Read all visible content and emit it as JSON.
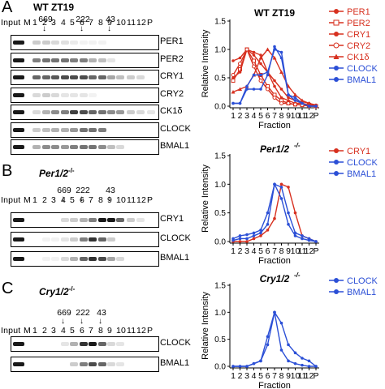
{
  "panels": [
    {
      "letter": "A",
      "title": "WT ZT19",
      "italic": false,
      "markers": [
        {
          "text": "669",
          "lane": 2
        },
        {
          "text": "222",
          "lane": 6
        },
        {
          "text": "43",
          "lane": 9
        }
      ],
      "rows": [
        {
          "label": "PER1",
          "dark": [
            0,
            0.2,
            0.2,
            0.15,
            0.12,
            0.08,
            0.05,
            0.05,
            0.05,
            0,
            0,
            0,
            0,
            0
          ]
        },
        {
          "label": "PER2",
          "dark": [
            0,
            0.5,
            0.55,
            0.55,
            0.55,
            0.5,
            0.5,
            0.3,
            0.25,
            0.1,
            0,
            0,
            0,
            0
          ]
        },
        {
          "label": "CRY1",
          "dark": [
            0,
            0.6,
            0.6,
            0.65,
            0.7,
            0.7,
            0.7,
            0.6,
            0.6,
            0.35,
            0.25,
            0.2,
            0.15,
            0
          ]
        },
        {
          "label": "CRY2",
          "dark": [
            0,
            0.15,
            0.2,
            0.15,
            0.1,
            0.1,
            0.1,
            0.05,
            0,
            0,
            0,
            0,
            0,
            0
          ]
        },
        {
          "label": "CK1δ",
          "dark": [
            0,
            0.15,
            0.3,
            0.45,
            0.5,
            0.75,
            0.7,
            0.6,
            0.55,
            0.45,
            0.4,
            0.2,
            0.15,
            0.1
          ]
        },
        {
          "label": "CLOCK",
          "dark": [
            0,
            0.2,
            0.25,
            0.3,
            0.3,
            0.4,
            0.55,
            0.55,
            0.5,
            0,
            0,
            0,
            0,
            0
          ]
        },
        {
          "label": "BMAL1",
          "dark": [
            0,
            0.3,
            0.45,
            0.45,
            0.4,
            0.5,
            0.55,
            0.55,
            0.45,
            0.25,
            0.15,
            0,
            0,
            0
          ]
        }
      ]
    },
    {
      "letter": "B",
      "title": "Per1/2",
      "sup": "-/-",
      "italic": true,
      "markers": [
        {
          "text": "669",
          "lane": 4
        },
        {
          "text": "222",
          "lane": 6
        },
        {
          "text": "43",
          "lane": 9
        }
      ],
      "rows": [
        {
          "label": "CRY1",
          "dark": [
            0,
            0,
            0,
            0,
            0.15,
            0.2,
            0.3,
            0.5,
            0.9,
            0.9,
            0.6,
            0.2,
            0.1,
            0
          ]
        },
        {
          "label": "CLOCK",
          "dark": [
            0,
            0,
            0.05,
            0.05,
            0.1,
            0.2,
            0.5,
            0.8,
            0.6,
            0.2,
            0,
            0,
            0,
            0
          ]
        },
        {
          "label": "BMAL1",
          "dark": [
            0,
            0,
            0.05,
            0.05,
            0.15,
            0.3,
            0.6,
            0.8,
            0.7,
            0.35,
            0.15,
            0,
            0,
            0
          ]
        }
      ]
    },
    {
      "letter": "C",
      "title": "Cry1/2",
      "sup": "-/-",
      "italic": true,
      "markers": [
        {
          "text": "669",
          "lane": 4
        },
        {
          "text": "222",
          "lane": 6
        },
        {
          "text": "43",
          "lane": 8
        }
      ],
      "rows": [
        {
          "label": "CLOCK",
          "dark": [
            0,
            0,
            0,
            0,
            0.1,
            0.3,
            0.8,
            0.9,
            0.6,
            0.15,
            0.1,
            0,
            0,
            0
          ]
        },
        {
          "label": "BMAL1",
          "dark": [
            0,
            0,
            0,
            0,
            0,
            0.2,
            0.5,
            0.7,
            0.6,
            0.15,
            0.1,
            0,
            0,
            0
          ]
        }
      ]
    }
  ],
  "lane_header": [
    "Input",
    "M",
    "1",
    "2",
    "3",
    "4",
    "5",
    "6",
    "7",
    "8",
    "9",
    "10",
    "11",
    "12",
    "P"
  ],
  "chart_data": [
    {
      "type": "line",
      "title": "WT ZT19",
      "xlabel": "Fraction",
      "ylabel": "Relative Intensity",
      "categories": [
        "1",
        "2",
        "3",
        "4",
        "5",
        "6",
        "7",
        "8",
        "9",
        "10",
        "11",
        "12",
        "P"
      ],
      "ylim": [
        0,
        1.5
      ],
      "yticks": [
        "0.0",
        "0.5",
        "1.0",
        "1.5"
      ],
      "legend": "right",
      "series": [
        {
          "name": "PER1",
          "color": "#d7301f",
          "marker": "circle",
          "values": [
            0.8,
            0.85,
            1.0,
            0.95,
            0.9,
            0.6,
            0.35,
            0.15,
            0.1,
            0.05,
            0.05,
            0.02,
            0.0
          ]
        },
        {
          "name": "PER2",
          "color": "#d7301f",
          "marker": "square-open",
          "values": [
            0.45,
            0.65,
            1.0,
            0.8,
            0.55,
            0.35,
            0.2,
            0.1,
            0.05,
            0.03,
            0.02,
            0.02,
            0.0
          ]
        },
        {
          "name": "CRY1",
          "color": "#d7301f",
          "marker": "circle",
          "values": [
            0.5,
            0.6,
            1.0,
            0.9,
            0.75,
            0.6,
            0.45,
            0.3,
            0.15,
            0.1,
            0.08,
            0.05,
            0.02
          ]
        },
        {
          "name": "CRY2",
          "color": "#d7301f",
          "marker": "circle-open",
          "values": [
            0.55,
            0.75,
            1.0,
            0.7,
            0.45,
            0.3,
            0.15,
            0.05,
            0.05,
            0.03,
            0.02,
            0.0,
            0.0
          ]
        },
        {
          "name": "CK1δ",
          "color": "#d7301f",
          "marker": "triangle",
          "values": [
            0.25,
            0.3,
            0.35,
            0.55,
            0.85,
            1.0,
            0.85,
            0.6,
            0.35,
            0.2,
            0.1,
            0.05,
            0.0
          ]
        },
        {
          "name": "CLOCK",
          "color": "#2b4fd6",
          "marker": "circle",
          "values": [
            0.05,
            0.05,
            0.35,
            0.55,
            0.55,
            0.6,
            1.0,
            0.95,
            0.2,
            0.1,
            0.05,
            0.0,
            0.0
          ]
        },
        {
          "name": "BMAL1",
          "color": "#2b4fd6",
          "marker": "circle",
          "values": [
            0.05,
            0.05,
            0.3,
            0.3,
            0.3,
            0.55,
            1.05,
            0.85,
            0.2,
            0.15,
            0.05,
            0.0,
            0.0
          ]
        }
      ]
    },
    {
      "type": "line",
      "title": "Per1/2",
      "title_sup": "-/-",
      "xlabel": "Fraction",
      "ylabel": "Relative Intensity",
      "categories": [
        "1",
        "2",
        "3",
        "4",
        "5",
        "6",
        "7",
        "8",
        "9",
        "10",
        "11",
        "12",
        "P"
      ],
      "ylim": [
        0,
        1.5
      ],
      "yticks": [
        "0.0",
        "0.5",
        "1.0",
        "1.5"
      ],
      "legend": "right",
      "series": [
        {
          "name": "CRY1",
          "color": "#d7301f",
          "marker": "circle",
          "values": [
            0.0,
            0.0,
            0.0,
            0.05,
            0.1,
            0.2,
            0.4,
            1.0,
            0.95,
            0.5,
            0.1,
            0.05,
            0.0
          ]
        },
        {
          "name": "CLOCK",
          "color": "#2b4fd6",
          "marker": "circle",
          "values": [
            0.02,
            0.05,
            0.05,
            0.1,
            0.15,
            0.3,
            1.0,
            0.75,
            0.3,
            0.1,
            0.05,
            0.02,
            0.0
          ]
        },
        {
          "name": "BMAL1",
          "color": "#2b4fd6",
          "marker": "circle",
          "values": [
            0.05,
            0.1,
            0.12,
            0.15,
            0.2,
            0.5,
            1.0,
            0.95,
            0.5,
            0.15,
            0.1,
            0.05,
            0.0
          ]
        }
      ]
    },
    {
      "type": "line",
      "title": "Cry1/2",
      "title_sup": "-/-",
      "xlabel": "Fraction",
      "ylabel": "Relative Intensity",
      "categories": [
        "1",
        "2",
        "3",
        "4",
        "5",
        "6",
        "7",
        "8",
        "9",
        "10",
        "11",
        "12",
        "P"
      ],
      "ylim": [
        0,
        1.5
      ],
      "yticks": [
        "0.0",
        "0.5",
        "1.0",
        "1.5"
      ],
      "legend": "right",
      "series": [
        {
          "name": "CLOCK",
          "color": "#2b4fd6",
          "marker": "circle",
          "values": [
            0.0,
            0.0,
            0.0,
            0.05,
            0.1,
            0.4,
            1.0,
            0.8,
            0.4,
            0.25,
            0.15,
            0.1,
            0.0
          ]
        },
        {
          "name": "BMAL1",
          "color": "#2b4fd6",
          "marker": "circle",
          "values": [
            0.0,
            0.0,
            0.0,
            0.05,
            0.1,
            0.55,
            1.0,
            0.3,
            0.1,
            0.05,
            0.02,
            0.0,
            0.0
          ]
        }
      ]
    }
  ]
}
